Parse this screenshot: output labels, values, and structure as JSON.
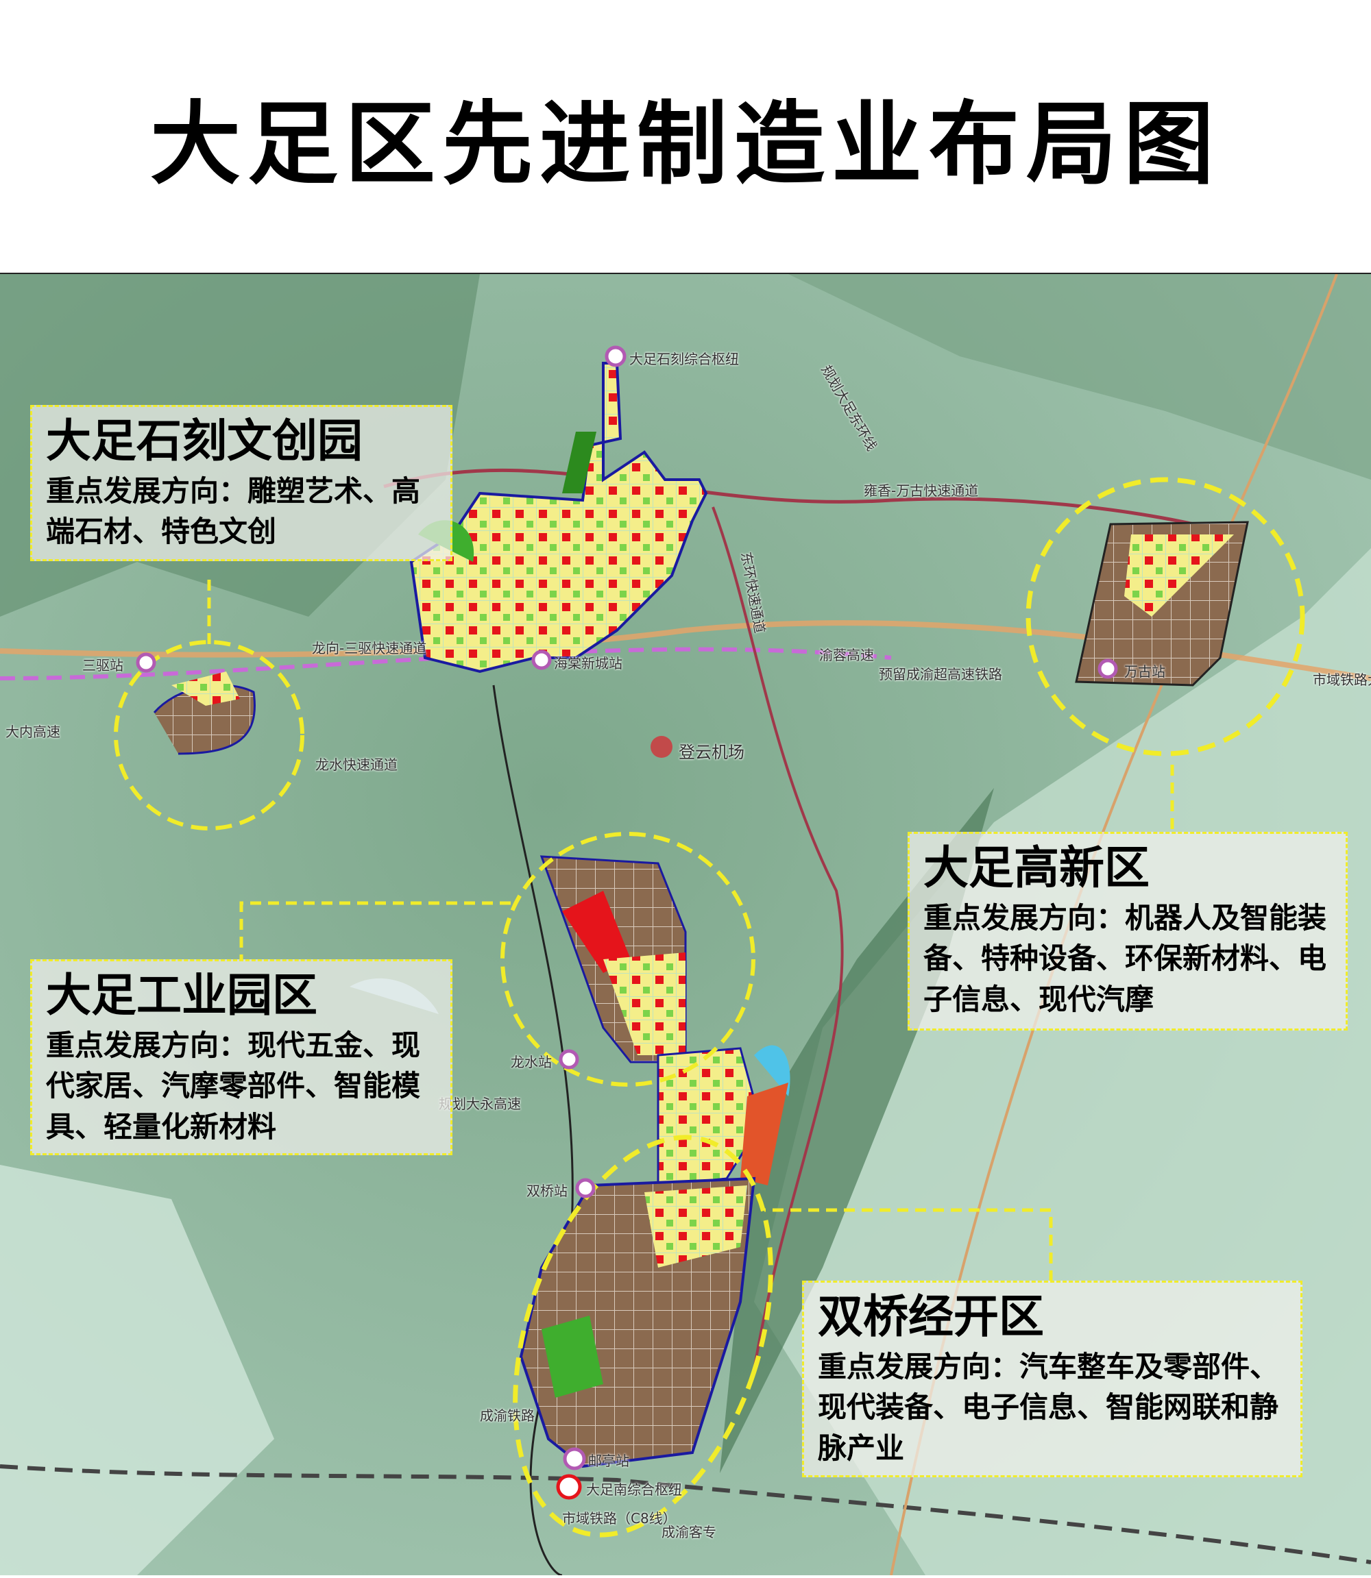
{
  "title": "大足区先进制造业布局图",
  "colors": {
    "highlight_dash": "#f1ec2a",
    "industrial": "#8b6a4f",
    "residential": "#f4ee8a",
    "commercial": "#e5141b",
    "green": "#3fae2e",
    "boundary": "#1a1aa0",
    "terrain": "#8fb7a0"
  },
  "zones": [
    {
      "name": "大足石刻文创园",
      "direction": "重点发展方向：雕塑艺术、高端石材、特色文创"
    },
    {
      "name": "大足工业园区",
      "direction": "重点发展方向：现代五金、现代家居、汽摩零部件、智能模具、轻量化新材料"
    },
    {
      "name": "大足高新区",
      "direction": "重点发展方向：机器人及智能装备、特种设备、环保新材料、电子信息、现代汽摩"
    },
    {
      "name": "双桥经开区",
      "direction": "重点发展方向：汽车整车及零部件、现代装备、电子信息、智能网联和静脉产业"
    }
  ],
  "places": {
    "hub_north": "大足石刻综合枢纽",
    "station_haitang": "海棠新城站",
    "airport": "登云机场",
    "station_sanqu": "三驱站",
    "station_wangu": "万古站",
    "station_longshui": "龙水站",
    "station_shuangqiao": "双桥站",
    "station_youting": "邮亭站",
    "hub_south": "大足南综合枢纽"
  },
  "roads": {
    "yurong": "渝蓉高速",
    "reserved_rail": "预留成渝超高速铁路",
    "danei": "大内高速",
    "longshui_exp": "龙水快速通道",
    "longxiang": "龙向-三驱快速通道",
    "dayong": "规划大永高速",
    "chengyu_rail": "成渝铁路",
    "chengyu_pdl": "成渝客专",
    "c8": "市域铁路（C8线）",
    "city_rail_east": "市域铁路大",
    "yongwangu": "雍香-万古快速通道",
    "east_ring": "规划大足东环线",
    "dongshan": "东环快速通道"
  }
}
